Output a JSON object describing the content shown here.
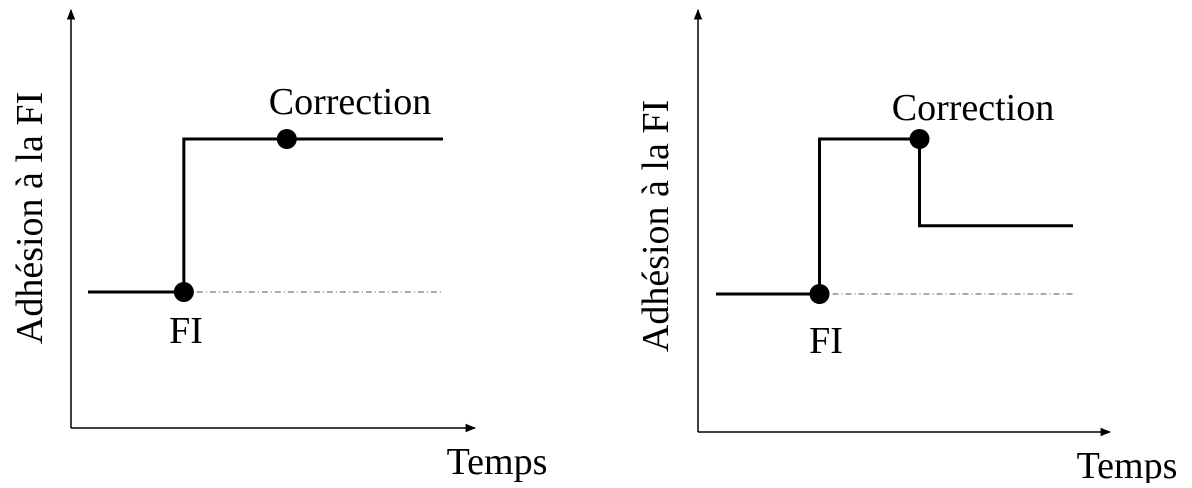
{
  "diagrams": [
    {
      "y_axis_label": "Adhésion à la FI",
      "x_axis_label": "Temps",
      "fi_label": "FI",
      "correction_label": "Correction",
      "adherence_path": [
        {
          "t": 0.0,
          "level": 0.0
        },
        {
          "t": 0.27,
          "level": 0.0
        },
        {
          "t": 0.27,
          "level": 1.0
        },
        {
          "t": 1.0,
          "level": 1.0
        }
      ],
      "baseline_reference_level": 0.0,
      "fi_point": {
        "t": 0.27,
        "level": 0.0
      },
      "correction_point": {
        "t": 0.56,
        "level": 1.0
      }
    },
    {
      "y_axis_label": "Adhésion à la FI",
      "x_axis_label": "Temps",
      "fi_label": "FI",
      "correction_label": "Correction",
      "adherence_path": [
        {
          "t": 0.0,
          "level": 0.0
        },
        {
          "t": 0.29,
          "level": 0.0
        },
        {
          "t": 0.29,
          "level": 1.0
        },
        {
          "t": 0.57,
          "level": 1.0
        },
        {
          "t": 0.57,
          "level": 0.44
        },
        {
          "t": 1.0,
          "level": 0.44
        }
      ],
      "baseline_reference_level": 0.0,
      "fi_point": {
        "t": 0.29,
        "level": 0.0
      },
      "correction_point": {
        "t": 0.57,
        "level": 1.0
      }
    }
  ]
}
